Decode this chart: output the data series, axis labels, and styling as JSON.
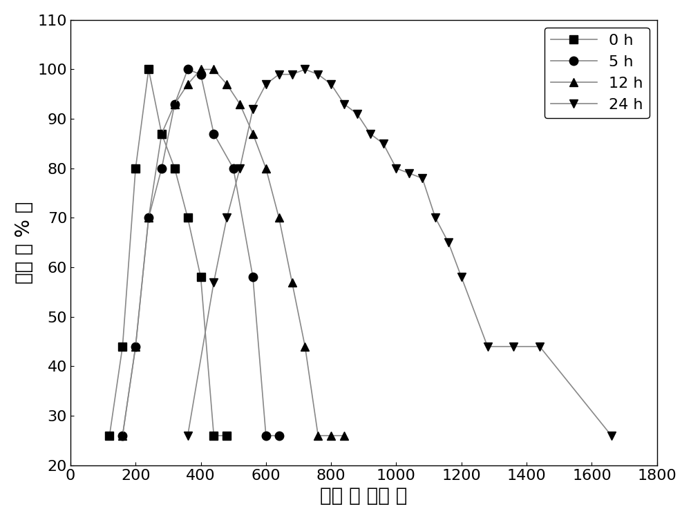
{
  "series": [
    {
      "label": "0 h",
      "marker": "s",
      "linestyle": "-",
      "color": "#000000",
      "linecolor": "#888888",
      "x": [
        120,
        160,
        200,
        240,
        280,
        320,
        360,
        400,
        440,
        480
      ],
      "y": [
        26,
        44,
        80,
        100,
        87,
        80,
        70,
        58,
        26,
        26
      ]
    },
    {
      "label": "5 h",
      "marker": "o",
      "linestyle": "-",
      "color": "#000000",
      "linecolor": "#888888",
      "x": [
        160,
        200,
        240,
        280,
        320,
        360,
        400,
        440,
        500,
        560,
        600,
        640
      ],
      "y": [
        26,
        44,
        70,
        80,
        93,
        100,
        99,
        87,
        80,
        58,
        26,
        26
      ]
    },
    {
      "label": "12 h",
      "marker": "^",
      "linestyle": "-",
      "color": "#000000",
      "linecolor": "#888888",
      "x": [
        160,
        200,
        240,
        280,
        320,
        360,
        400,
        440,
        480,
        520,
        560,
        600,
        640,
        680,
        720,
        760,
        800,
        840
      ],
      "y": [
        26,
        44,
        70,
        87,
        93,
        97,
        100,
        100,
        97,
        93,
        87,
        80,
        70,
        57,
        44,
        26,
        26,
        26
      ]
    },
    {
      "label": "24 h",
      "marker": "v",
      "linestyle": "-",
      "color": "#000000",
      "linecolor": "#888888",
      "x": [
        360,
        440,
        480,
        520,
        560,
        600,
        640,
        680,
        720,
        760,
        800,
        840,
        880,
        920,
        960,
        1000,
        1040,
        1080,
        1120,
        1160,
        1200,
        1280,
        1360,
        1440,
        1660
      ],
      "y": [
        26,
        57,
        70,
        80,
        92,
        97,
        99,
        99,
        100,
        99,
        97,
        93,
        91,
        87,
        85,
        80,
        79,
        78,
        70,
        65,
        58,
        44,
        44,
        44,
        26
      ]
    }
  ],
  "xlabel": "粒径 （ 纳米 ）",
  "ylabel": "光强 （ % ）",
  "xlim": [
    0,
    1800
  ],
  "ylim": [
    20,
    110
  ],
  "xticks": [
    0,
    200,
    400,
    600,
    800,
    1000,
    1200,
    1400,
    1600,
    1800
  ],
  "yticks": [
    20,
    30,
    40,
    50,
    60,
    70,
    80,
    90,
    100,
    110
  ],
  "xlabel_fontsize": 20,
  "ylabel_fontsize": 20,
  "tick_fontsize": 16,
  "legend_fontsize": 16,
  "background_color": "#ffffff",
  "markersize": 9,
  "linewidth": 1.2
}
